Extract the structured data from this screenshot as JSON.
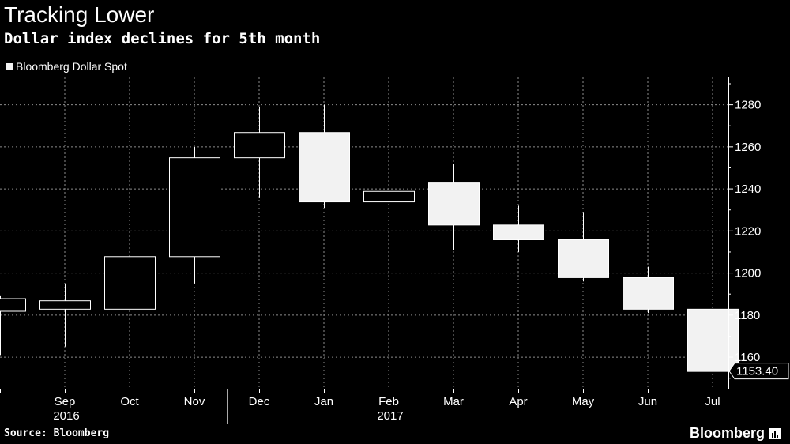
{
  "chart_data": {
    "type": "candlestick",
    "title": "Tracking Lower",
    "subtitle": "Dollar index declines for 5th month",
    "legend": "Bloomberg Dollar Spot",
    "source": "Source: Bloomberg",
    "brand": "Bloomberg",
    "ylim": [
      1145,
      1293
    ],
    "yticks": [
      1160,
      1180,
      1200,
      1220,
      1240,
      1260,
      1280
    ],
    "last_value_label": "1153.40",
    "years": [
      {
        "label": "2016",
        "center_index": 1
      },
      {
        "label": "2017",
        "center_index": 6
      }
    ],
    "year_divider_index": 3.5,
    "candles": [
      {
        "label": "",
        "open": 1182,
        "high": 1189,
        "low": 1161,
        "close": 1188
      },
      {
        "label": "Sep",
        "open": 1183,
        "high": 1195,
        "low": 1165,
        "close": 1187
      },
      {
        "label": "Oct",
        "open": 1183,
        "high": 1213,
        "low": 1181,
        "close": 1208
      },
      {
        "label": "Nov",
        "open": 1208,
        "high": 1260,
        "low": 1195,
        "close": 1255
      },
      {
        "label": "Dec",
        "open": 1255,
        "high": 1279,
        "low": 1236,
        "close": 1267
      },
      {
        "label": "Jan",
        "open": 1267,
        "high": 1280,
        "low": 1231,
        "close": 1234
      },
      {
        "label": "Feb",
        "open": 1234,
        "high": 1249,
        "low": 1227,
        "close": 1239
      },
      {
        "label": "Mar",
        "open": 1243,
        "high": 1252,
        "low": 1211,
        "close": 1223
      },
      {
        "label": "Apr",
        "open": 1223,
        "high": 1232,
        "low": 1210,
        "close": 1216
      },
      {
        "label": "May",
        "open": 1216,
        "high": 1229,
        "low": 1196,
        "close": 1198
      },
      {
        "label": "Jun",
        "open": 1198,
        "high": 1203,
        "low": 1181,
        "close": 1183
      },
      {
        "label": "Jul",
        "open": 1183,
        "high": 1194,
        "low": 1153.4,
        "close": 1153.4
      }
    ]
  }
}
